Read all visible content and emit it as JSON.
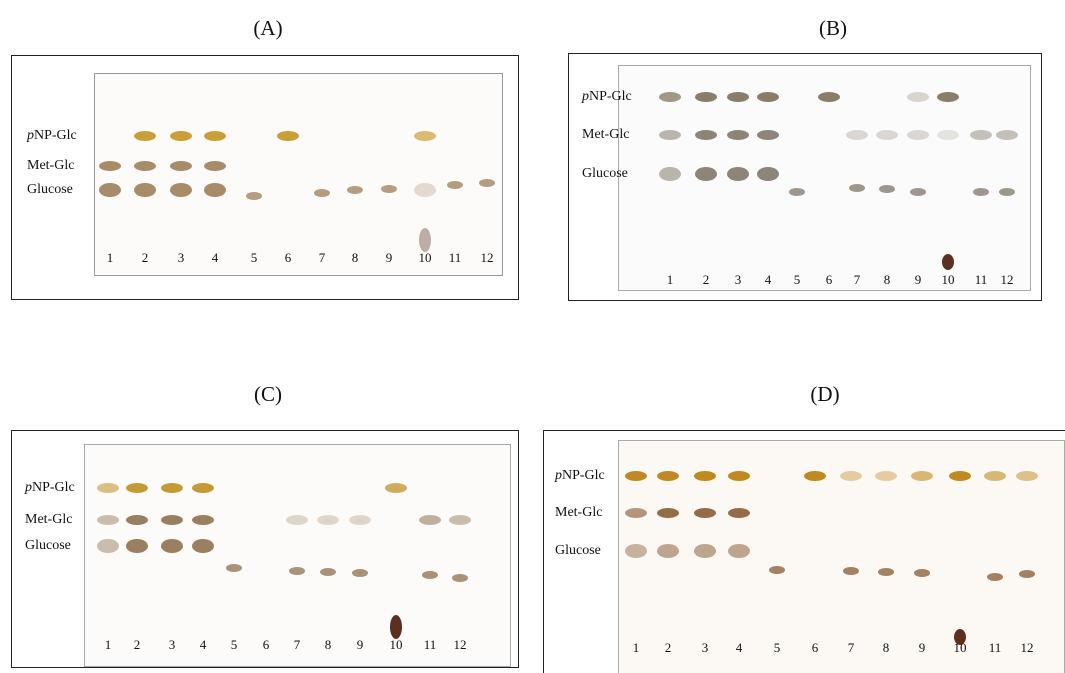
{
  "panels": [
    {
      "label": "(A)",
      "row_labels": [
        "pNP-Glc",
        "Met-Glc",
        "Glucose"
      ],
      "lanes": [
        1,
        2,
        3,
        4,
        5,
        6,
        7,
        8,
        9,
        10,
        11,
        12
      ]
    },
    {
      "label": "(B)",
      "row_labels": [
        "pNP-Glc",
        "Met-Glc",
        "Glucose"
      ],
      "lanes": [
        1,
        2,
        3,
        4,
        5,
        6,
        7,
        8,
        9,
        10,
        11,
        12
      ]
    },
    {
      "label": "(C)",
      "row_labels": [
        "pNP-Glc",
        "Met-Glc",
        "Glucose"
      ],
      "lanes": [
        1,
        2,
        3,
        4,
        5,
        6,
        7,
        8,
        9,
        10,
        11,
        12
      ]
    },
    {
      "label": "(D)",
      "row_labels": [
        "pNP-Glc",
        "Met-Glc",
        "Glucose"
      ],
      "lanes": [
        1,
        2,
        3,
        4,
        5,
        6,
        7,
        8,
        9,
        10,
        11,
        12
      ]
    }
  ]
}
